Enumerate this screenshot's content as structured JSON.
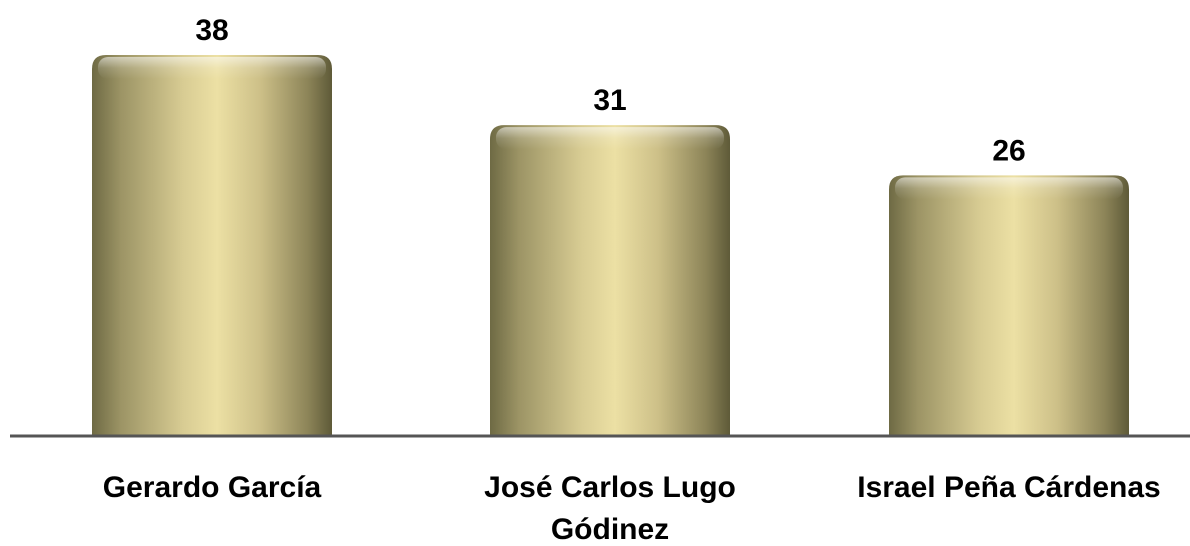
{
  "chart_data": {
    "type": "bar",
    "title": "",
    "xlabel": "",
    "ylabel": "",
    "categories": [
      "Gerardo García",
      "José Carlos Lugo Ǵodinez",
      "Israel Peña Cárdenas"
    ],
    "category_lines": [
      [
        "Gerardo García"
      ],
      [
        "José Carlos Lugo",
        "Gódinez"
      ],
      [
        "Israel Peña Cárdenas"
      ]
    ],
    "values": [
      38,
      31,
      26
    ],
    "ylim": [
      0,
      38
    ],
    "grid": false,
    "legend": "none",
    "colors": {
      "bar_light": "#ece0a4",
      "bar_mid": "#cdc088",
      "bar_dark": "#6e6a44",
      "axis": "#555555"
    }
  }
}
